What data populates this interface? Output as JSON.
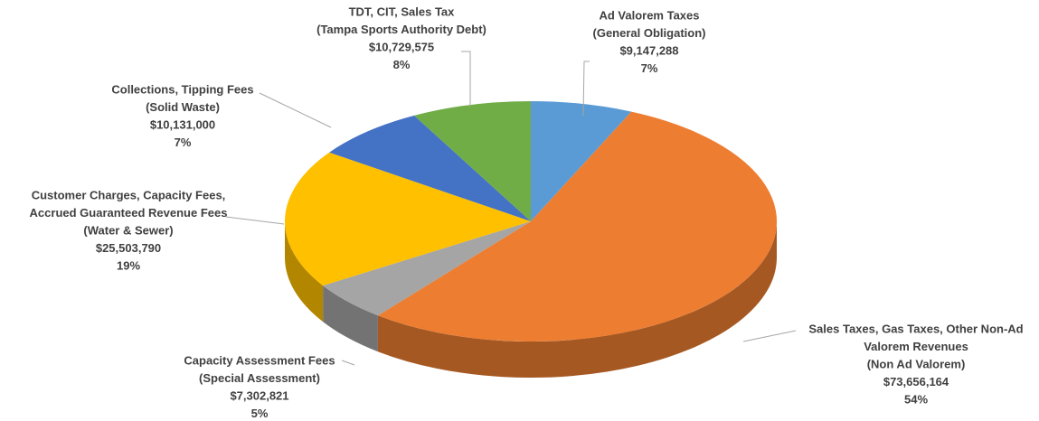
{
  "chart_data": {
    "type": "pie3d",
    "categories": [
      [
        "Ad Valorem Taxes",
        "(General Obligation)"
      ],
      [
        "Sales Taxes, Gas Taxes, Other Non-Ad",
        "Valorem Revenues",
        "(Non Ad Valorem)"
      ],
      [
        "Capacity Assessment Fees",
        "(Special Assessment)"
      ],
      [
        "Customer Charges, Capacity Fees,",
        "Accrued Guaranteed Revenue Fees",
        "(Water & Sewer)"
      ],
      [
        "Collections, Tipping Fees",
        "(Solid Waste)"
      ],
      [
        "TDT, CIT, Sales Tax",
        "(Tampa Sports Authority Debt)"
      ]
    ],
    "values": [
      9147288,
      73656164,
      7302821,
      25503790,
      10131000,
      10729575
    ],
    "value_labels": [
      "$9,147,288",
      "$73,656,164",
      "$7,302,821",
      "$25,503,790",
      "$10,131,000",
      "$10,729,575"
    ],
    "percents": [
      7,
      54,
      5,
      19,
      7,
      8
    ],
    "percent_labels": [
      "7%",
      "54%",
      "5%",
      "19%",
      "7%",
      "8%"
    ],
    "colors": [
      "#5b9bd5",
      "#ed7d31",
      "#a5a5a5",
      "#ffc000",
      "#4472c4",
      "#70ad47"
    ]
  }
}
